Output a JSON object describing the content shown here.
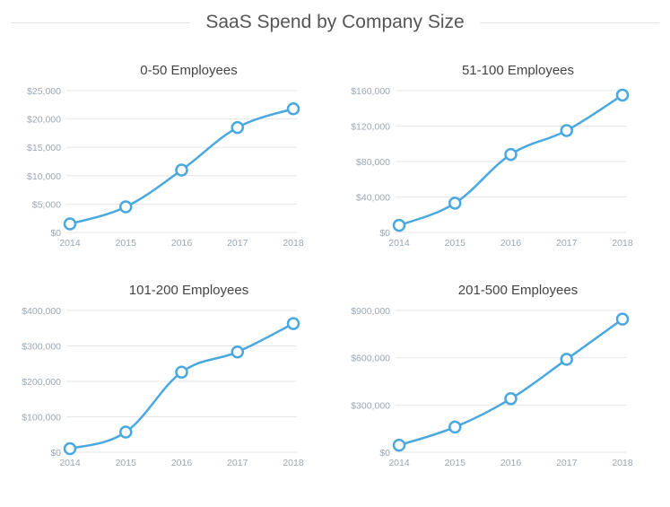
{
  "title": "SaaS Spend by Company Size",
  "colors": {
    "line": "#4aa8e0",
    "grid": "#e6e6e6",
    "tick": "#9aa7b3",
    "title": "#444444",
    "point_fill": "#ffffff"
  },
  "chart_data": [
    {
      "type": "line",
      "title": "0-50 Employees",
      "x": [
        "2014",
        "2015",
        "2016",
        "2017",
        "2018"
      ],
      "series": [
        {
          "values": [
            1500,
            4500,
            11000,
            18500,
            21800
          ]
        }
      ],
      "ylim": [
        0,
        25000
      ],
      "yticks": [
        0,
        5000,
        10000,
        15000,
        20000,
        25000
      ],
      "ytick_labels": [
        "$0",
        "$5,000",
        "$10,000",
        "$15,000",
        "$20,000",
        "$25,000"
      ],
      "grid": true
    },
    {
      "type": "line",
      "title": "51-100 Employees",
      "x": [
        "2014",
        "2015",
        "2016",
        "2017",
        "2018"
      ],
      "series": [
        {
          "values": [
            8000,
            33000,
            88000,
            115000,
            155000
          ]
        }
      ],
      "ylim": [
        0,
        160000
      ],
      "yticks": [
        0,
        40000,
        80000,
        120000,
        160000
      ],
      "ytick_labels": [
        "$0",
        "$40,000",
        "$80,000",
        "$120,000",
        "$160,000"
      ],
      "grid": true
    },
    {
      "type": "line",
      "title": "101-200 Employees",
      "x": [
        "2014",
        "2015",
        "2016",
        "2017",
        "2018"
      ],
      "series": [
        {
          "values": [
            10000,
            57000,
            226000,
            283000,
            363000
          ]
        }
      ],
      "ylim": [
        0,
        400000
      ],
      "yticks": [
        0,
        100000,
        200000,
        300000,
        400000
      ],
      "ytick_labels": [
        "$0",
        "$100,000",
        "$200,000",
        "$300,000",
        "$400,000"
      ],
      "grid": true
    },
    {
      "type": "line",
      "title": "201-500 Employees",
      "x": [
        "2014",
        "2015",
        "2016",
        "2017",
        "2018"
      ],
      "series": [
        {
          "values": [
            45000,
            160000,
            340000,
            590000,
            845000
          ]
        }
      ],
      "ylim": [
        0,
        900000
      ],
      "yticks": [
        0,
        300000,
        600000,
        900000
      ],
      "ytick_labels": [
        "$0",
        "$300,000",
        "$600,000",
        "$900,000"
      ],
      "grid": true
    }
  ]
}
